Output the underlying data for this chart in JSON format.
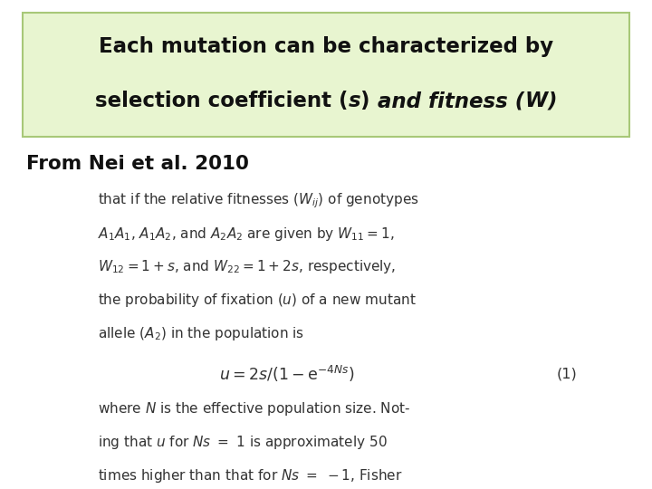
{
  "bg_color": "#ffffff",
  "box_bg_color": "#e8f5d0",
  "box_edge_color": "#a8c878",
  "title_line1": "Each mutation can be characterized by",
  "subtitle": "From Nei et al. 2010",
  "eq_number": "(1)",
  "body_lines": [
    "that if the relative fitnesses ($W_{ij}$) of genotypes",
    "$A_1A_1$, $A_1A_2$, and $A_2A_2$ are given by $W_{11} = 1$,",
    "$W_{12} = 1 + s$, and $W_{22} = 1 + 2s$, respectively,",
    "the probability of fixation ($u$) of a new mutant",
    "allele ($A_2$) in the population is"
  ],
  "body_lines2": [
    "where $N$ is the effective population size. Not-",
    "ing that $u$ for $Ns\\ =\\ 1$ is approximately 50",
    "times higher than that for $Ns\\ =\\ -1$, Fisher"
  ],
  "fig_width": 7.2,
  "fig_height": 5.4,
  "dpi": 100
}
